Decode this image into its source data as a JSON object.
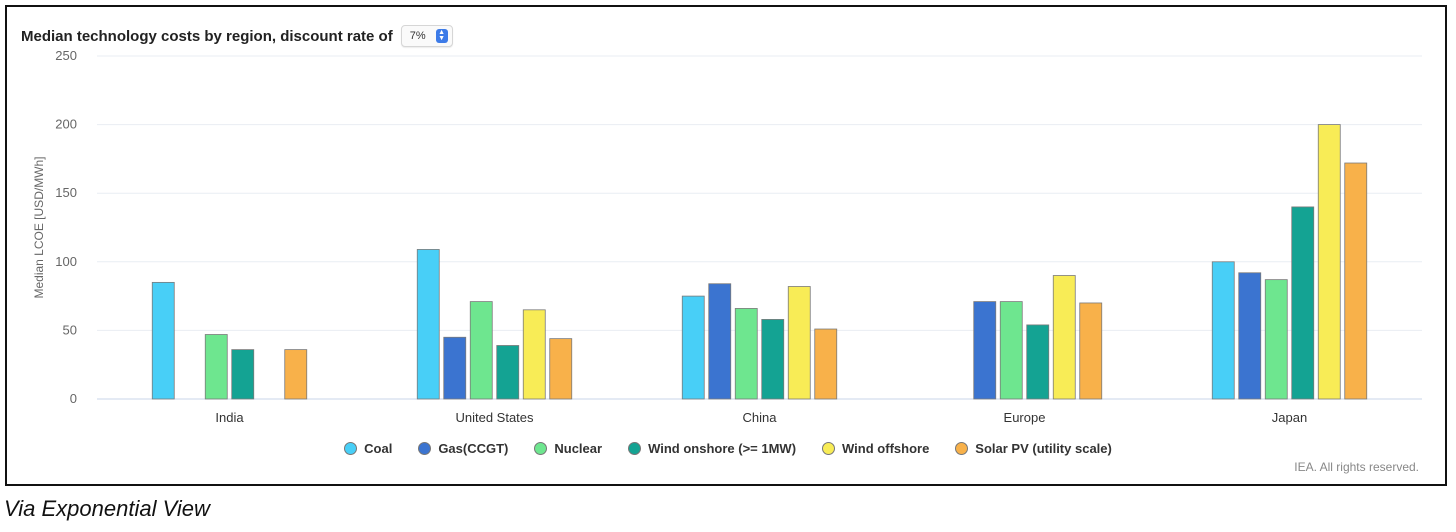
{
  "header": {
    "title": "Median technology costs by region, discount rate of",
    "rate_value": "7%"
  },
  "credits": "IEA. All rights reserved.",
  "caption": "Via Exponential View",
  "colors": {
    "Coal": "#48cff7",
    "Gas(CCGT)": "#3b74d0",
    "Nuclear": "#6ee68f",
    "Wind onshore (>= 1MW)": "#14a393",
    "Wind offshore": "#f8ec56",
    "Solar PV (utility scale)": "#f8b14a"
  },
  "chart_data": {
    "type": "bar",
    "title": "Median technology costs by region, discount rate of 7%",
    "xlabel": "",
    "ylabel": "Median LCOE [USD/MWh]",
    "ylim": [
      0,
      250
    ],
    "yticks": [
      0,
      50,
      100,
      150,
      200,
      250
    ],
    "grid": true,
    "legend_position": "bottom",
    "categories": [
      "India",
      "United States",
      "China",
      "Europe",
      "Japan"
    ],
    "series": [
      {
        "name": "Coal",
        "values": [
          85,
          109,
          75,
          null,
          100
        ]
      },
      {
        "name": "Gas(CCGT)",
        "values": [
          null,
          45,
          84,
          71,
          92
        ]
      },
      {
        "name": "Nuclear",
        "values": [
          47,
          71,
          66,
          71,
          87
        ]
      },
      {
        "name": "Wind onshore (>= 1MW)",
        "values": [
          36,
          39,
          58,
          54,
          140
        ]
      },
      {
        "name": "Wind offshore",
        "values": [
          null,
          65,
          82,
          90,
          200
        ]
      },
      {
        "name": "Solar PV (utility scale)",
        "values": [
          36,
          44,
          51,
          70,
          172
        ]
      }
    ]
  }
}
